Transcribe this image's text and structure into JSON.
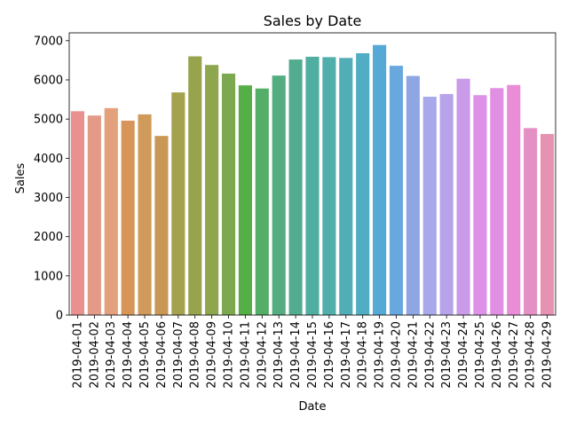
{
  "chart_data": {
    "type": "bar",
    "title": "Sales by Date",
    "xlabel": "Date",
    "ylabel": "Sales",
    "ylim": [
      0,
      7200
    ],
    "yticks": [
      0,
      1000,
      2000,
      3000,
      4000,
      5000,
      6000,
      7000
    ],
    "grid": false,
    "legend": "none",
    "categories": [
      "2019-04-01",
      "2019-04-02",
      "2019-04-03",
      "2019-04-04",
      "2019-04-05",
      "2019-04-06",
      "2019-04-07",
      "2019-04-08",
      "2019-04-09",
      "2019-04-10",
      "2019-04-11",
      "2019-04-12",
      "2019-04-13",
      "2019-04-14",
      "2019-04-15",
      "2019-04-16",
      "2019-04-17",
      "2019-04-18",
      "2019-04-19",
      "2019-04-20",
      "2019-04-21",
      "2019-04-22",
      "2019-04-23",
      "2019-04-24",
      "2019-04-25",
      "2019-04-26",
      "2019-04-27",
      "2019-04-28",
      "2019-04-29"
    ],
    "values": [
      5200,
      5090,
      5280,
      4960,
      5120,
      4570,
      5680,
      6600,
      6380,
      6160,
      5860,
      5780,
      6110,
      6520,
      6590,
      6580,
      6560,
      6680,
      6890,
      6360,
      6100,
      5570,
      5640,
      6030,
      5610,
      5790,
      5870,
      4770,
      4620
    ],
    "colors": [
      "#e8918e",
      "#e39b87",
      "#e2a07b",
      "#d8955a",
      "#d09a5a",
      "#c99857",
      "#a5a24e",
      "#97a34d",
      "#8ea64e",
      "#7ca84f",
      "#56ae47",
      "#55ae67",
      "#54ad81",
      "#54ac90",
      "#50aea0",
      "#51aeab",
      "#52adb6",
      "#51adc3",
      "#55a9d4",
      "#68a8df",
      "#8ea7e3",
      "#a7a9ea",
      "#b7a3ea",
      "#c99be8",
      "#dd92e8",
      "#e18fe2",
      "#e88dd6",
      "#e590c5",
      "#e791b3"
    ]
  }
}
